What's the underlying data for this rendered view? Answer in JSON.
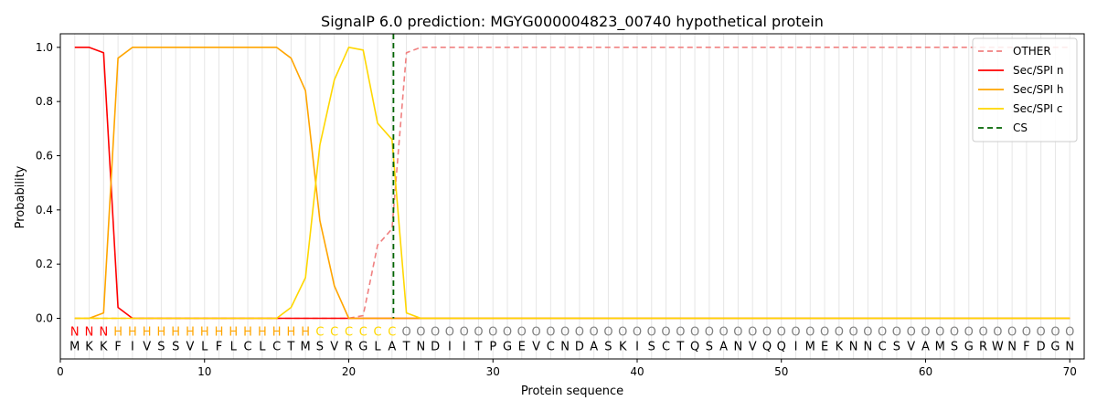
{
  "chart_data": {
    "type": "line",
    "title": "SignalP 6.0 prediction: MGYG000004823_00740 hypothetical protein",
    "xlabel": "Protein sequence",
    "ylabel": "Probability",
    "xlim": [
      0,
      71
    ],
    "ylim": [
      -0.15,
      1.05
    ],
    "xticks": [
      0,
      10,
      20,
      30,
      40,
      50,
      60,
      70
    ],
    "yticks": [
      0.0,
      0.2,
      0.4,
      0.6,
      0.8,
      1.0
    ],
    "ytick_labels": [
      "0.0",
      "0.2",
      "0.4",
      "0.6",
      "0.8",
      "1.0"
    ],
    "grid": "vertical lines at every residue",
    "legend_position": "top-right",
    "sequence": [
      "M",
      "K",
      "K",
      "F",
      "I",
      "V",
      "S",
      "S",
      "V",
      "L",
      "F",
      "L",
      "C",
      "L",
      "C",
      "T",
      "M",
      "S",
      "V",
      "R",
      "G",
      "L",
      "A",
      "T",
      "N",
      "D",
      "I",
      "I",
      "T",
      "P",
      "G",
      "E",
      "V",
      "C",
      "N",
      "D",
      "A",
      "S",
      "K",
      "I",
      "S",
      "C",
      "T",
      "Q",
      "S",
      "A",
      "N",
      "V",
      "Q",
      "Q",
      "I",
      "M",
      "E",
      "K",
      "N",
      "N",
      "C",
      "S",
      "V",
      "A",
      "M",
      "S",
      "G",
      "R",
      "W",
      "N",
      "F",
      "D",
      "G",
      "N"
    ],
    "labels": [
      "N",
      "N",
      "N",
      "H",
      "H",
      "H",
      "H",
      "H",
      "H",
      "H",
      "H",
      "H",
      "H",
      "H",
      "H",
      "H",
      "H",
      "C",
      "C",
      "C",
      "C",
      "C",
      "C",
      "O",
      "O",
      "O",
      "O",
      "O",
      "O",
      "O",
      "O",
      "O",
      "O",
      "O",
      "O",
      "O",
      "O",
      "O",
      "O",
      "O",
      "O",
      "O",
      "O",
      "O",
      "O",
      "O",
      "O",
      "O",
      "O",
      "O",
      "O",
      "O",
      "O",
      "O",
      "O",
      "O",
      "O",
      "O",
      "O",
      "O",
      "O",
      "O",
      "O",
      "O",
      "O",
      "O",
      "O",
      "O",
      "O",
      "O"
    ],
    "label_colors": {
      "N": "#ff0000",
      "H": "#ffa500",
      "C": "#ffd700",
      "O": "#808080"
    },
    "series": [
      {
        "name": "OTHER",
        "color": "#f08080",
        "dash": "dashed",
        "values": [
          0,
          0,
          0,
          0,
          0,
          0,
          0,
          0,
          0,
          0,
          0,
          0,
          0,
          0,
          0,
          0,
          0,
          0,
          0,
          0,
          0.01,
          0.27,
          0.33,
          0.98,
          1.0,
          1.0,
          1.0,
          1.0,
          1.0,
          1.0,
          1.0,
          1.0,
          1.0,
          1.0,
          1.0,
          1.0,
          1.0,
          1.0,
          1.0,
          1.0,
          1.0,
          1.0,
          1.0,
          1.0,
          1.0,
          1.0,
          1.0,
          1.0,
          1.0,
          1.0,
          1.0,
          1.0,
          1.0,
          1.0,
          1.0,
          1.0,
          1.0,
          1.0,
          1.0,
          1.0,
          1.0,
          1.0,
          1.0,
          1.0,
          1.0,
          1.0,
          1.0,
          1.0,
          1.0,
          1.0
        ]
      },
      {
        "name": "Sec/SPI n",
        "color": "#ff0000",
        "dash": "solid",
        "values": [
          1.0,
          1.0,
          0.98,
          0.04,
          0,
          0,
          0,
          0,
          0,
          0,
          0,
          0,
          0,
          0,
          0,
          0,
          0,
          0,
          0,
          0,
          0,
          0,
          0,
          0,
          0,
          0,
          0,
          0,
          0,
          0,
          0,
          0,
          0,
          0,
          0,
          0,
          0,
          0,
          0,
          0,
          0,
          0,
          0,
          0,
          0,
          0,
          0,
          0,
          0,
          0,
          0,
          0,
          0,
          0,
          0,
          0,
          0,
          0,
          0,
          0,
          0,
          0,
          0,
          0,
          0,
          0,
          0,
          0,
          0,
          0
        ]
      },
      {
        "name": "Sec/SPI h",
        "color": "#ffa500",
        "dash": "solid",
        "values": [
          0,
          0,
          0.02,
          0.96,
          1.0,
          1.0,
          1.0,
          1.0,
          1.0,
          1.0,
          1.0,
          1.0,
          1.0,
          1.0,
          1.0,
          0.96,
          0.84,
          0.36,
          0.12,
          0.0,
          0,
          0,
          0,
          0,
          0,
          0,
          0,
          0,
          0,
          0,
          0,
          0,
          0,
          0,
          0,
          0,
          0,
          0,
          0,
          0,
          0,
          0,
          0,
          0,
          0,
          0,
          0,
          0,
          0,
          0,
          0,
          0,
          0,
          0,
          0,
          0,
          0,
          0,
          0,
          0,
          0,
          0,
          0,
          0,
          0,
          0,
          0,
          0,
          0,
          0
        ]
      },
      {
        "name": "Sec/SPI c",
        "color": "#ffd700",
        "dash": "solid",
        "values": [
          0,
          0,
          0,
          0,
          0,
          0,
          0,
          0,
          0,
          0,
          0,
          0,
          0,
          0,
          0,
          0.04,
          0.15,
          0.64,
          0.88,
          1.0,
          0.99,
          0.72,
          0.66,
          0.02,
          0,
          0,
          0,
          0,
          0,
          0,
          0,
          0,
          0,
          0,
          0,
          0,
          0,
          0,
          0,
          0,
          0,
          0,
          0,
          0,
          0,
          0,
          0,
          0,
          0,
          0,
          0,
          0,
          0,
          0,
          0,
          0,
          0,
          0,
          0,
          0,
          0,
          0,
          0,
          0,
          0,
          0,
          0,
          0,
          0,
          0
        ]
      }
    ],
    "cleavage_site": {
      "name": "CS",
      "x": 23.1,
      "color": "#006400",
      "dash": "dashed"
    }
  }
}
